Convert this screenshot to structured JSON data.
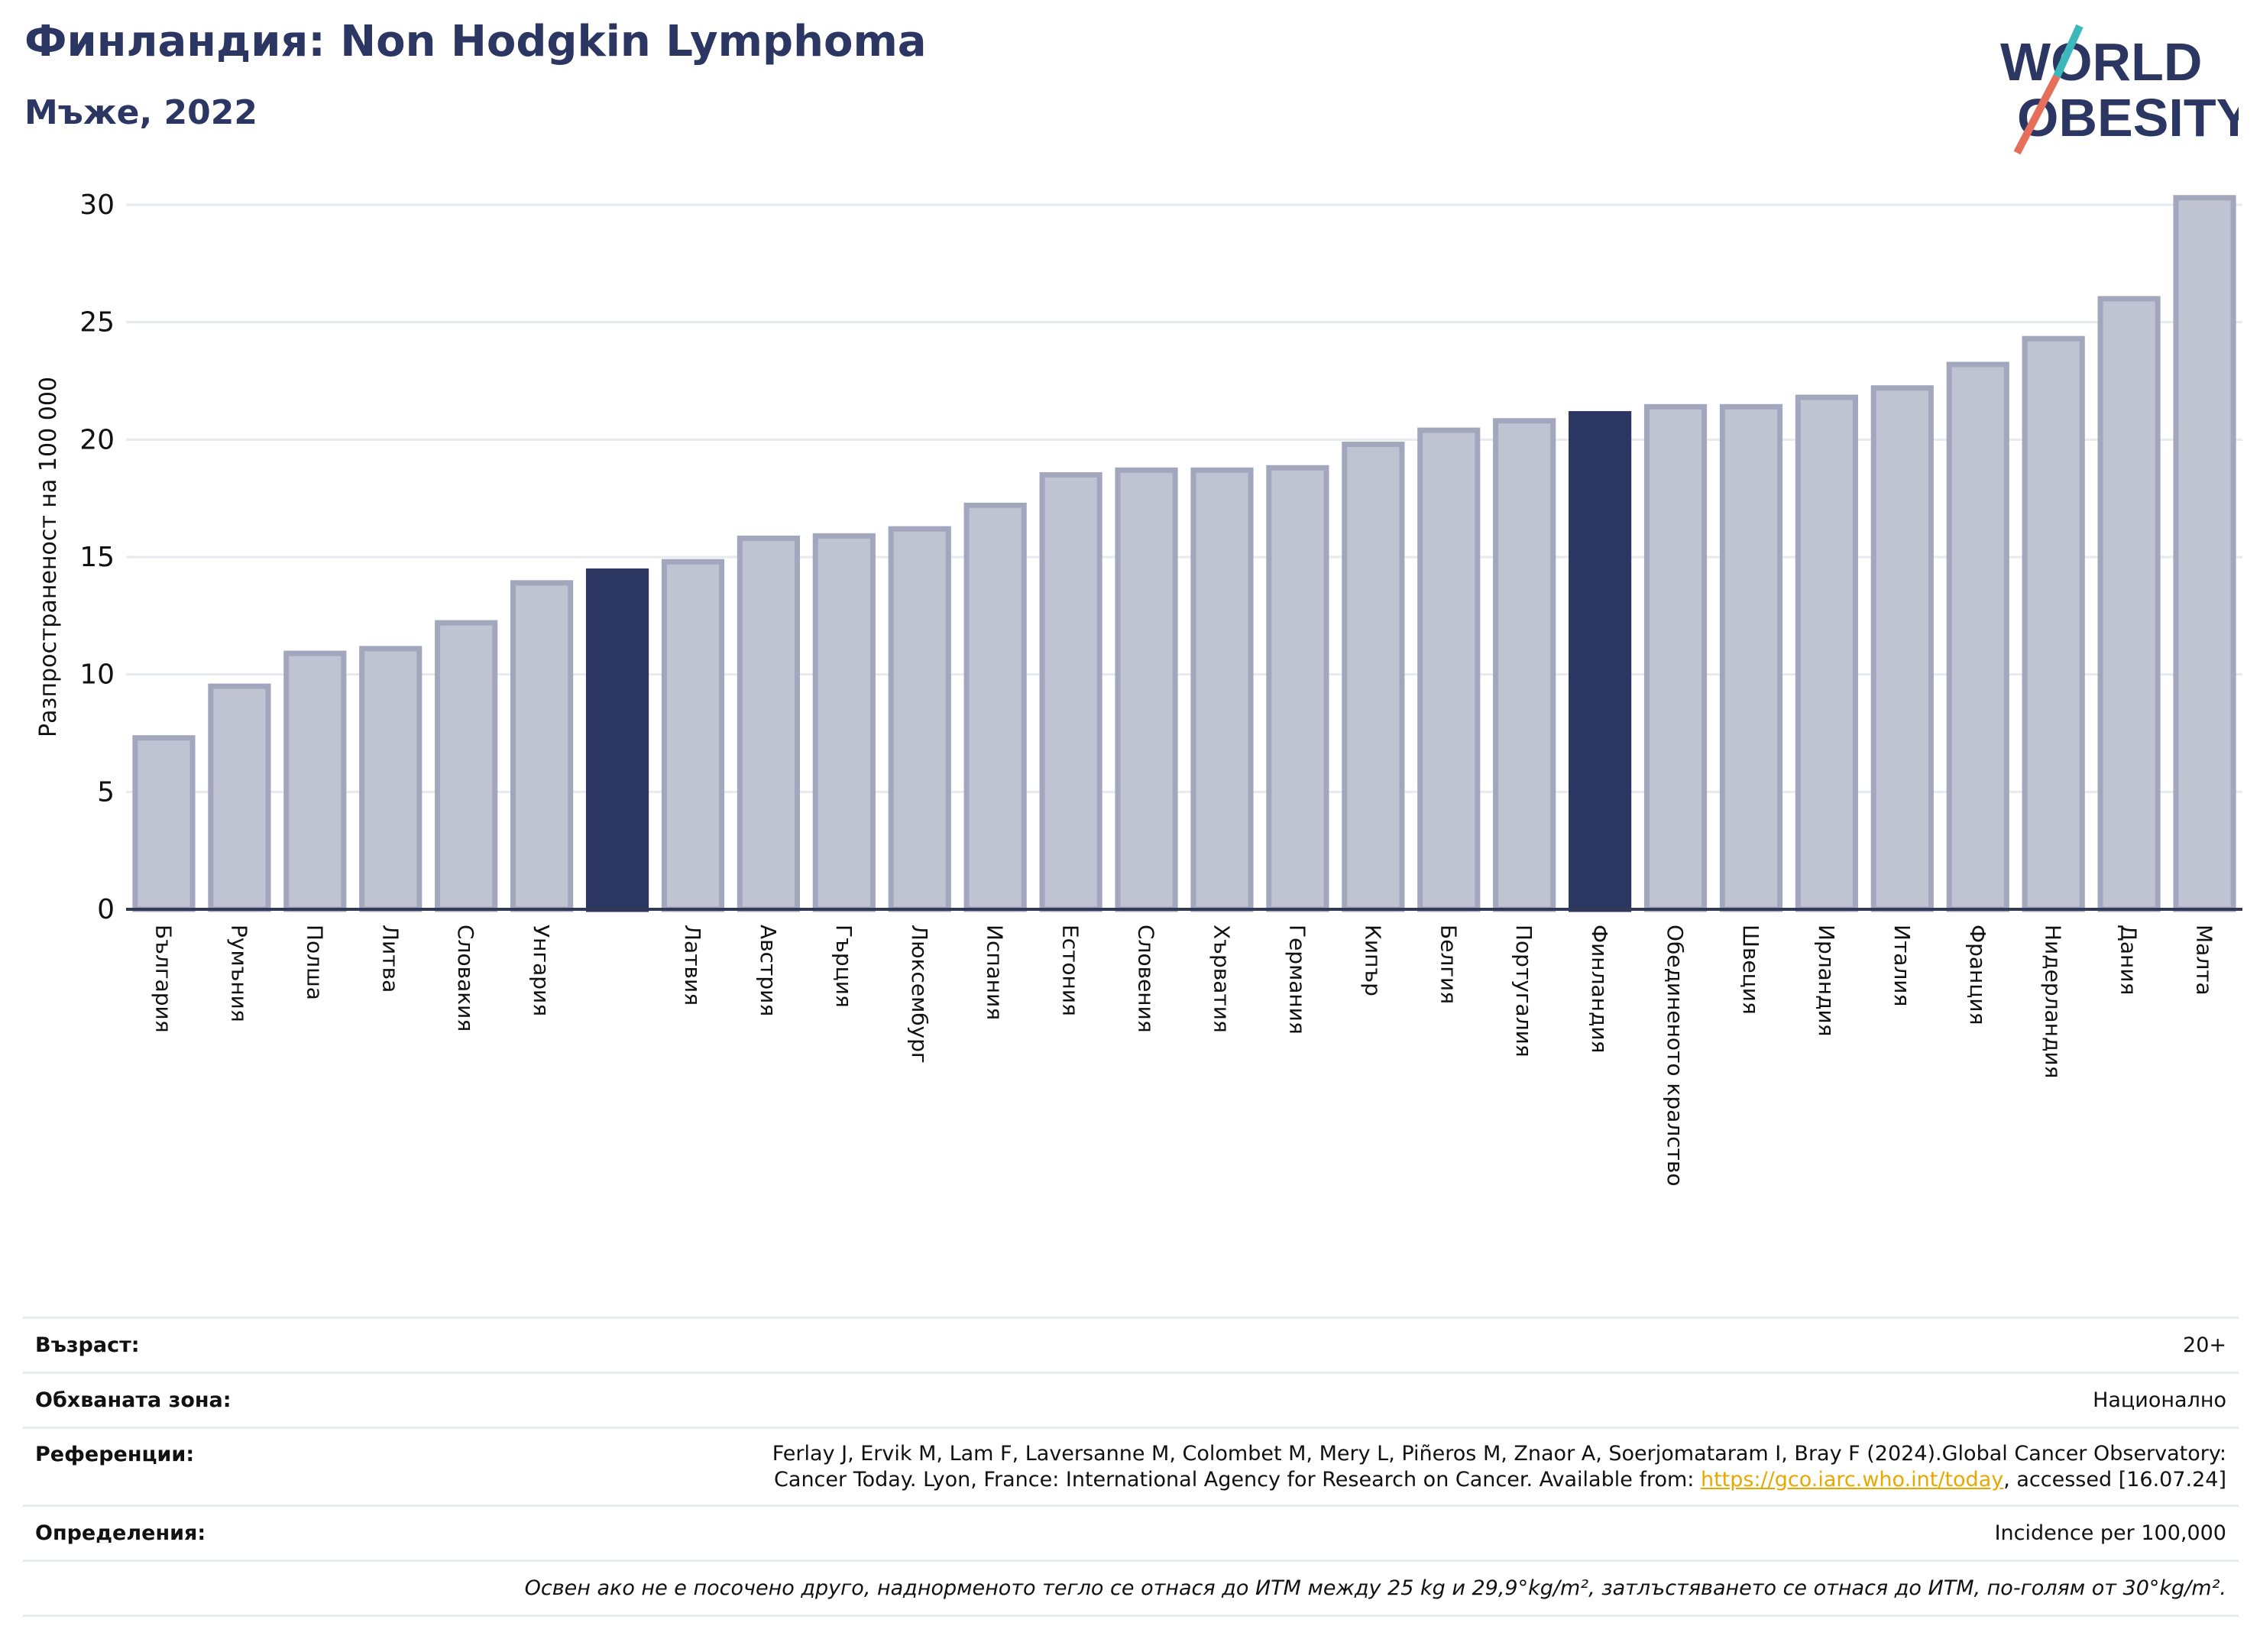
{
  "header": {
    "title": "Финландия: Non Hodgkin Lymphoma",
    "subtitle": "Мъже, 2022",
    "logo_line1": "WORLD",
    "logo_line2": "OBESITY"
  },
  "colors": {
    "bar": "#c0c3d1",
    "bar_border": "#a3a7bd",
    "highlight": "#2b3663",
    "axis_text": "#111111",
    "grid": "#e7eaee",
    "logo_text": "#2b3663",
    "logo_teal": "#3cb8bd",
    "logo_red": "#e56f5b"
  },
  "chart_data": {
    "type": "bar",
    "title": "",
    "xlabel": "",
    "ylabel": "Разпространеност  на 100 000",
    "ylim": [
      0,
      31
    ],
    "yticks": [
      0,
      5,
      10,
      15,
      20,
      25,
      30
    ],
    "grid": true,
    "categories": [
      "България",
      "Румъния",
      "Полша",
      "Литва",
      "Словакия",
      "Унгария",
      "",
      "Латвия",
      "Австрия",
      "Гърция",
      "Люксембург",
      "Испания",
      "Естония",
      "Словения",
      "Хърватия",
      "Германия",
      "Кипър",
      "Белгия",
      "Португалия",
      "Финландия",
      "Обединеното кралство",
      "Швеция",
      "Ирландия",
      "Италия",
      "Франция",
      "Нидерландия",
      "Дания",
      "Малта"
    ],
    "values": [
      7.3,
      9.5,
      10.9,
      11.1,
      12.2,
      13.9,
      14.4,
      14.8,
      15.8,
      15.9,
      16.2,
      17.2,
      18.5,
      18.7,
      18.7,
      18.8,
      19.8,
      20.4,
      20.8,
      21.1,
      21.4,
      21.4,
      21.8,
      22.2,
      23.2,
      24.3,
      26.0,
      30.3
    ],
    "highlight": [
      6,
      19
    ]
  },
  "info": {
    "age_label": "Възраст:",
    "age_value": "20+",
    "area_label": "Обхваната зона:",
    "area_value": "Национално",
    "ref_label": "Референции:",
    "ref_line1": "Ferlay J, Ervik M, Lam F, Laversanne M, Colombet M, Mery L, Piñeros M, Znaor A, Soerjomataram I, Bray F (2024).Global Cancer Observatory:",
    "ref_line2_pre": "Cancer Today. Lyon, France: International Agency for Research on Cancer. Available from: ",
    "ref_link": "https://gco.iarc.who.int/today",
    "ref_line2_post": ", accessed [16.07.24]",
    "def_label": "Определения:",
    "def_value": "Incidence per 100,000",
    "note": "Освен ако не е посочено друго, наднорменото тегло се отнася до ИТМ между 25 kg и 29,9°kg/m², затлъстяването се отнася до ИТМ, по-голям от 30°kg/m²."
  }
}
